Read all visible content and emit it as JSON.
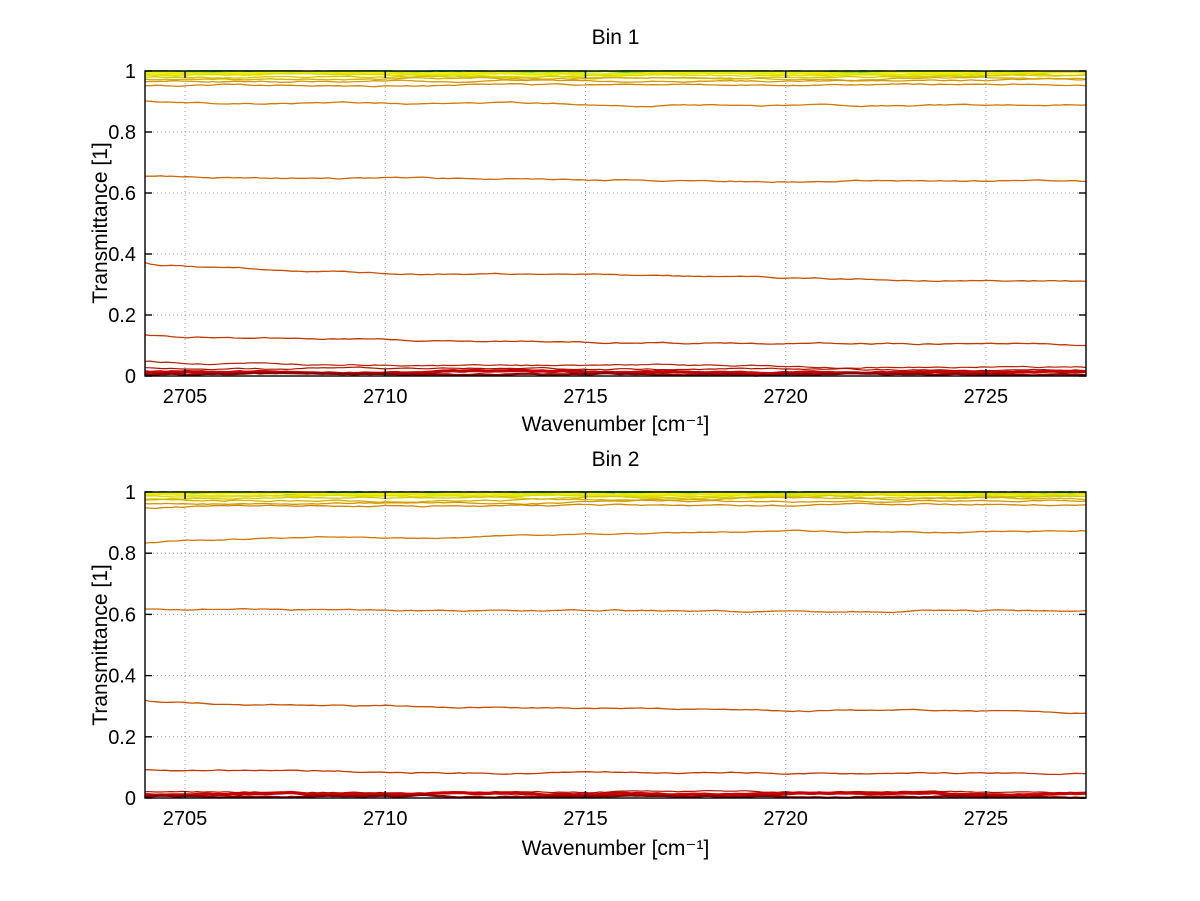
{
  "figure": {
    "background": "#ffffff",
    "grid_color": "#999999",
    "axis_color": "#000000"
  },
  "chart_data": [
    {
      "type": "line",
      "title": "Bin 1",
      "xlabel": "Wavenumber [cm⁻¹]",
      "ylabel": "Transmittance [1]",
      "xlim": [
        2704,
        2727.5
      ],
      "ylim": [
        0,
        1
      ],
      "xticks": [
        2705,
        2710,
        2715,
        2720,
        2725
      ],
      "yticks": [
        0,
        0.2,
        0.4,
        0.6,
        0.8,
        1
      ],
      "grid": true,
      "legend": "none",
      "series": [
        {
          "y0": 1.0,
          "y1": 1.0,
          "color": "#00c8f0",
          "width": 1.3,
          "dash": "8 6"
        },
        {
          "y0": 0.9995,
          "y1": 0.9995,
          "color": "#00d8a0",
          "width": 1.3
        },
        {
          "y0": 0.998,
          "y1": 0.998,
          "color": "#40d840",
          "width": 1.3
        },
        {
          "y0": 0.9965,
          "y1": 0.997,
          "color": "#a8e000",
          "width": 1.3
        },
        {
          "y0": 0.994,
          "y1": 0.9945,
          "color": "#f0f000",
          "width": 2.6
        },
        {
          "y0": 0.99,
          "y1": 0.991,
          "color": "#e6e600",
          "width": 1.6
        },
        {
          "y0": 0.9855,
          "y1": 0.987,
          "color": "#dcdc00",
          "width": 1.3
        },
        {
          "y0": 0.98,
          "y1": 0.982,
          "color": "#d4c800",
          "width": 1.3
        },
        {
          "y0": 0.9735,
          "y1": 0.976,
          "color": "#d2b000",
          "width": 1.3
        },
        {
          "y0": 0.9655,
          "y1": 0.9685,
          "color": "#d29800",
          "width": 1.3
        },
        {
          "y0": 0.952,
          "y1": 0.956,
          "color": "#d28600",
          "width": 1.3
        },
        {
          "y0": 0.9,
          "y1": 0.887,
          "color": "#d27800",
          "width": 1.3
        },
        {
          "y0": 0.656,
          "y1": 0.638,
          "color": "#d06600",
          "width": 1.3
        },
        {
          "y0": 0.37,
          "y1": 0.31,
          "color": "#c85000",
          "width": 1.3
        },
        {
          "y0": 0.135,
          "y1": 0.104,
          "color": "#c23800",
          "width": 1.3
        },
        {
          "y0": 0.047,
          "y1": 0.03,
          "color": "#b42000",
          "width": 1.2
        },
        {
          "y0": 0.026,
          "y1": 0.019,
          "color": "#a81400",
          "width": 1.2
        },
        {
          "y0": 0.013,
          "y1": 0.012,
          "color": "#c80000",
          "width": 3.2
        },
        {
          "y0": 0.005,
          "y1": 0.005,
          "color": "#8c0000",
          "width": 2.2
        }
      ]
    },
    {
      "type": "line",
      "title": "Bin 2",
      "xlabel": "Wavenumber [cm⁻¹]",
      "ylabel": "Transmittance [1]",
      "xlim": [
        2704,
        2727.5
      ],
      "ylim": [
        0,
        1
      ],
      "xticks": [
        2705,
        2710,
        2715,
        2720,
        2725
      ],
      "yticks": [
        0,
        0.2,
        0.4,
        0.6,
        0.8,
        1
      ],
      "grid": true,
      "legend": "none",
      "series": [
        {
          "y0": 1.0,
          "y1": 1.0,
          "color": "#00c8f0",
          "width": 1.3,
          "dash": "8 6"
        },
        {
          "y0": 0.9995,
          "y1": 0.9995,
          "color": "#00d8a0",
          "width": 1.3
        },
        {
          "y0": 0.998,
          "y1": 0.998,
          "color": "#40d840",
          "width": 1.3
        },
        {
          "y0": 0.996,
          "y1": 0.9968,
          "color": "#a8e000",
          "width": 1.3
        },
        {
          "y0": 0.9935,
          "y1": 0.995,
          "color": "#f0f000",
          "width": 2.6
        },
        {
          "y0": 0.9895,
          "y1": 0.992,
          "color": "#e6e600",
          "width": 1.6
        },
        {
          "y0": 0.9845,
          "y1": 0.988,
          "color": "#dcdc00",
          "width": 1.3
        },
        {
          "y0": 0.9785,
          "y1": 0.9835,
          "color": "#d4c800",
          "width": 1.3
        },
        {
          "y0": 0.9715,
          "y1": 0.978,
          "color": "#d2b000",
          "width": 1.3
        },
        {
          "y0": 0.962,
          "y1": 0.971,
          "color": "#d29800",
          "width": 1.3
        },
        {
          "y0": 0.949,
          "y1": 0.96,
          "color": "#d28600",
          "width": 1.3
        },
        {
          "y0": 0.833,
          "y1": 0.876,
          "color": "#d27800",
          "width": 1.3
        },
        {
          "y0": 0.616,
          "y1": 0.61,
          "color": "#d06600",
          "width": 1.3
        },
        {
          "y0": 0.318,
          "y1": 0.28,
          "color": "#c85000",
          "width": 1.3
        },
        {
          "y0": 0.092,
          "y1": 0.078,
          "color": "#c23800",
          "width": 1.3
        },
        {
          "y0": 0.022,
          "y1": 0.018,
          "color": "#a81400",
          "width": 1.2
        },
        {
          "y0": 0.012,
          "y1": 0.012,
          "color": "#c80000",
          "width": 3.2
        },
        {
          "y0": 0.005,
          "y1": 0.005,
          "color": "#8c0000",
          "width": 2.2
        }
      ]
    }
  ]
}
